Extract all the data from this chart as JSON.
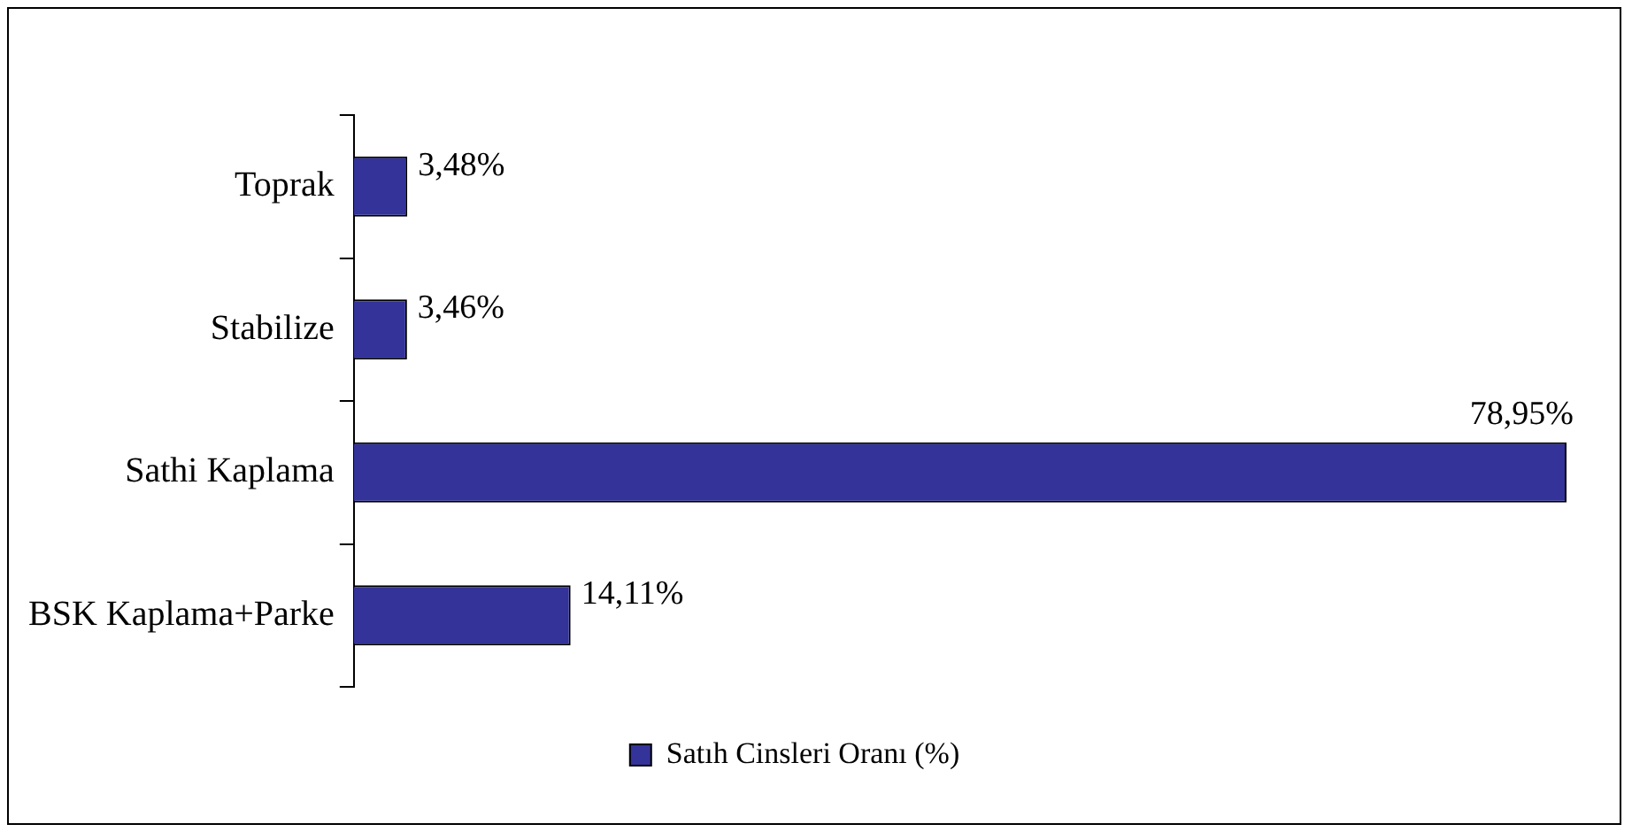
{
  "chart_data": {
    "type": "bar",
    "orientation": "horizontal",
    "categories": [
      "Toprak",
      "Stabilize",
      "Sathi Kaplama",
      "BSK Kaplama+Parke"
    ],
    "series": [
      {
        "name": "Satıh Cinsleri Oranı (%)",
        "color": "#333399",
        "values": [
          3.48,
          3.46,
          78.95,
          14.11
        ],
        "value_labels": [
          "3,48%",
          "3,46%",
          "78,95%",
          "14,11%"
        ]
      }
    ],
    "legend": "bottom",
    "grid": false
  }
}
